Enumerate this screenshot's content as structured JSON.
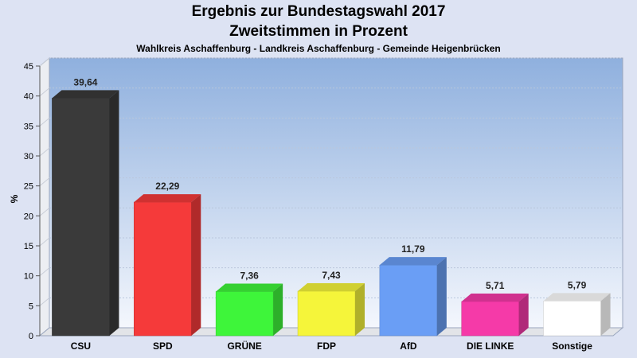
{
  "chart_data": {
    "type": "bar",
    "title": "Ergebnis zur Bundestagswahl 2017",
    "title2": "Zweitstimmen in Prozent",
    "subtitle": "Wahlkreis Aschaffenburg - Landkreis Aschaffenburg - Gemeinde Heigenbrücken",
    "ylabel": "%",
    "ylim": [
      0,
      45
    ],
    "yticks": [
      "0",
      "5",
      "10",
      "15",
      "20",
      "25",
      "30",
      "35",
      "40",
      "45"
    ],
    "categories": [
      "CSU",
      "SPD",
      "GRÜNE",
      "FDP",
      "AfD",
      "DIE LINKE",
      "Sonstige"
    ],
    "values": [
      39.64,
      22.29,
      7.36,
      7.43,
      11.79,
      5.71,
      5.79
    ],
    "labels": [
      "39,64",
      "22,29",
      "7,36",
      "7,43",
      "11,79",
      "5,71",
      "5,79"
    ],
    "colors": [
      "#3a3a3a",
      "#f53a3a",
      "#3ef53a",
      "#f5f53a",
      "#6a9ef5",
      "#f53aa8",
      "#ffffff"
    ],
    "grid": true
  }
}
